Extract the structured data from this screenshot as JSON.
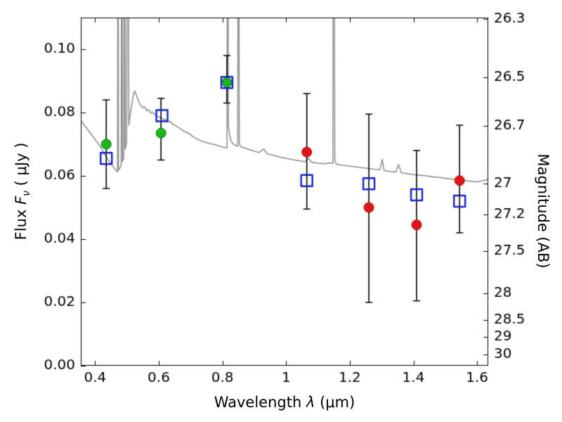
{
  "chart_data": {
    "type": "line",
    "title": "",
    "xlabel": {
      "pre": "Wavelength  ",
      "sym": "λ",
      "post": " (μm)"
    },
    "ylabel_left": {
      "pre": "Flux  ",
      "sym": "F",
      "sub": "ν",
      "post": "  ( μJy )"
    },
    "ylabel_right": "Magnitude (AB)",
    "xlim": [
      0.355,
      1.635
    ],
    "ylim": [
      0.0,
      0.11
    ],
    "x_ticks": [
      0.4,
      0.6,
      0.8,
      1.0,
      1.2,
      1.4,
      1.6
    ],
    "x_tick_labels": [
      "0.4",
      "0.6",
      "0.8",
      "1",
      "1.2",
      "1.4",
      "1.6"
    ],
    "y_ticks_left": [
      0.0,
      0.02,
      0.04,
      0.06,
      0.08,
      0.1
    ],
    "y_tick_labels_left": [
      "0.00",
      "0.02",
      "0.04",
      "0.06",
      "0.08",
      "0.10"
    ],
    "y_ticks_right_mag": [
      26.3,
      26.5,
      26.7,
      27,
      27.2,
      27.5,
      28,
      28.5,
      29,
      30
    ],
    "y_tick_labels_right": [
      "26.3",
      "26.5",
      "26.7",
      "27",
      "27.2",
      "27.5",
      "28",
      "28.5",
      "29",
      "30"
    ],
    "magnitude_zeropoint_ab": 23.9,
    "grid": false,
    "legend": "none",
    "spectrum": {
      "name": "model-spectrum",
      "color": "#909090",
      "linewidth": 1.6,
      "points": [
        [
          0.355,
          0.0775
        ],
        [
          0.37,
          0.0755
        ],
        [
          0.385,
          0.0735
        ],
        [
          0.4,
          0.0715
        ],
        [
          0.415,
          0.0695
        ],
        [
          0.43,
          0.0668
        ],
        [
          0.445,
          0.0645
        ],
        [
          0.455,
          0.0632
        ],
        [
          0.462,
          0.0622
        ],
        [
          0.468,
          0.0615
        ],
        [
          0.4705,
          0.0613
        ],
        [
          0.472,
          0.2
        ],
        [
          0.4735,
          0.0618
        ],
        [
          0.478,
          0.0625
        ],
        [
          0.482,
          0.0632
        ],
        [
          0.484,
          0.2
        ],
        [
          0.486,
          0.0645
        ],
        [
          0.4905,
          0.066
        ],
        [
          0.4925,
          0.2
        ],
        [
          0.4945,
          0.0685
        ],
        [
          0.499,
          0.0705
        ],
        [
          0.5025,
          0.2
        ],
        [
          0.506,
          0.076
        ],
        [
          0.511,
          0.08
        ],
        [
          0.516,
          0.083
        ],
        [
          0.52,
          0.0855
        ],
        [
          0.524,
          0.0868
        ],
        [
          0.528,
          0.086
        ],
        [
          0.533,
          0.0845
        ],
        [
          0.538,
          0.0832
        ],
        [
          0.544,
          0.0822
        ],
        [
          0.55,
          0.0815
        ],
        [
          0.556,
          0.0818
        ],
        [
          0.562,
          0.0805
        ],
        [
          0.568,
          0.081
        ],
        [
          0.574,
          0.0798
        ],
        [
          0.58,
          0.0802
        ],
        [
          0.588,
          0.0792
        ],
        [
          0.596,
          0.0788
        ],
        [
          0.604,
          0.0785
        ],
        [
          0.612,
          0.078
        ],
        [
          0.62,
          0.0778
        ],
        [
          0.628,
          0.077
        ],
        [
          0.636,
          0.0772
        ],
        [
          0.645,
          0.0762
        ],
        [
          0.654,
          0.0758
        ],
        [
          0.663,
          0.0752
        ],
        [
          0.672,
          0.0746
        ],
        [
          0.681,
          0.074
        ],
        [
          0.69,
          0.0736
        ],
        [
          0.7,
          0.073
        ],
        [
          0.71,
          0.0722
        ],
        [
          0.72,
          0.0716
        ],
        [
          0.73,
          0.0712
        ],
        [
          0.74,
          0.0708
        ],
        [
          0.75,
          0.0705
        ],
        [
          0.76,
          0.0702
        ],
        [
          0.77,
          0.07
        ],
        [
          0.78,
          0.0697
        ],
        [
          0.79,
          0.0694
        ],
        [
          0.8,
          0.0691
        ],
        [
          0.81,
          0.0689
        ],
        [
          0.8145,
          0.0688
        ],
        [
          0.8165,
          0.2
        ],
        [
          0.8185,
          0.076
        ],
        [
          0.8225,
          0.073
        ],
        [
          0.827,
          0.071
        ],
        [
          0.834,
          0.07
        ],
        [
          0.844,
          0.0695
        ],
        [
          0.848,
          0.0693
        ],
        [
          0.85,
          0.2
        ],
        [
          0.853,
          0.07
        ],
        [
          0.858,
          0.0692
        ],
        [
          0.87,
          0.0688
        ],
        [
          0.885,
          0.0683
        ],
        [
          0.9,
          0.0678
        ],
        [
          0.915,
          0.0674
        ],
        [
          0.93,
          0.0685
        ],
        [
          0.94,
          0.067
        ],
        [
          0.955,
          0.0666
        ],
        [
          0.97,
          0.0662
        ],
        [
          0.985,
          0.0658
        ],
        [
          1.0,
          0.0655
        ],
        [
          1.02,
          0.0651
        ],
        [
          1.04,
          0.0648
        ],
        [
          1.06,
          0.0645
        ],
        [
          1.07,
          0.0656
        ],
        [
          1.08,
          0.0643
        ],
        [
          1.1,
          0.064
        ],
        [
          1.12,
          0.0638
        ],
        [
          1.135,
          0.0641
        ],
        [
          1.147,
          0.0639
        ],
        [
          1.1495,
          0.2
        ],
        [
          1.153,
          0.0648
        ],
        [
          1.158,
          0.0637
        ],
        [
          1.175,
          0.0634
        ],
        [
          1.195,
          0.0631
        ],
        [
          1.215,
          0.0629
        ],
        [
          1.235,
          0.0626
        ],
        [
          1.255,
          0.0624
        ],
        [
          1.275,
          0.0621
        ],
        [
          1.295,
          0.0619
        ],
        [
          1.302,
          0.0652
        ],
        [
          1.308,
          0.0617
        ],
        [
          1.325,
          0.0614
        ],
        [
          1.345,
          0.0612
        ],
        [
          1.353,
          0.0636
        ],
        [
          1.362,
          0.061
        ],
        [
          1.38,
          0.0607
        ],
        [
          1.4,
          0.0604
        ],
        [
          1.42,
          0.0602
        ],
        [
          1.44,
          0.06
        ],
        [
          1.46,
          0.0597
        ],
        [
          1.48,
          0.0595
        ],
        [
          1.5,
          0.0592
        ],
        [
          1.52,
          0.059
        ],
        [
          1.54,
          0.0588
        ],
        [
          1.56,
          0.0585
        ],
        [
          1.58,
          0.0583
        ],
        [
          1.6,
          0.0581
        ],
        [
          1.62,
          0.0585
        ],
        [
          1.635,
          0.0588
        ]
      ]
    },
    "errorbars": {
      "color": "#000000",
      "linewidth": 1.6,
      "capsize": 5,
      "points": [
        {
          "x": 0.435,
          "ylo": 0.056,
          "yhi": 0.084
        },
        {
          "x": 0.607,
          "ylo": 0.065,
          "yhi": 0.0845
        },
        {
          "x": 0.814,
          "ylo": 0.083,
          "yhi": 0.098
        },
        {
          "x": 1.065,
          "ylo": 0.0495,
          "yhi": 0.086
        },
        {
          "x": 1.26,
          "ylo": 0.02,
          "yhi": 0.0795
        },
        {
          "x": 1.41,
          "ylo": 0.0205,
          "yhi": 0.068
        },
        {
          "x": 1.545,
          "ylo": 0.042,
          "yhi": 0.076
        }
      ]
    },
    "series": [
      {
        "name": "green-filled-circles",
        "marker": "circle",
        "color": "#1db31d",
        "edge_color": "#0d7a0d",
        "size": 14,
        "points": [
          [
            0.435,
            0.07
          ],
          [
            0.607,
            0.0735
          ],
          [
            0.814,
            0.0895
          ]
        ]
      },
      {
        "name": "red-filled-circles",
        "marker": "circle",
        "color": "#e41414",
        "edge_color": "#9e0b0b",
        "size": 14,
        "points": [
          [
            1.065,
            0.0675
          ],
          [
            1.26,
            0.05
          ],
          [
            1.41,
            0.0445
          ],
          [
            1.545,
            0.0585
          ]
        ]
      },
      {
        "name": "blue-open-squares",
        "marker": "square-open",
        "color": "#1422cc",
        "edge_color": "#1422cc",
        "size": 16,
        "points": [
          [
            0.435,
            0.0655
          ],
          [
            0.61,
            0.079
          ],
          [
            0.814,
            0.0895
          ],
          [
            1.065,
            0.0585
          ],
          [
            1.26,
            0.0575
          ],
          [
            1.41,
            0.054
          ],
          [
            1.545,
            0.052
          ]
        ]
      }
    ]
  }
}
